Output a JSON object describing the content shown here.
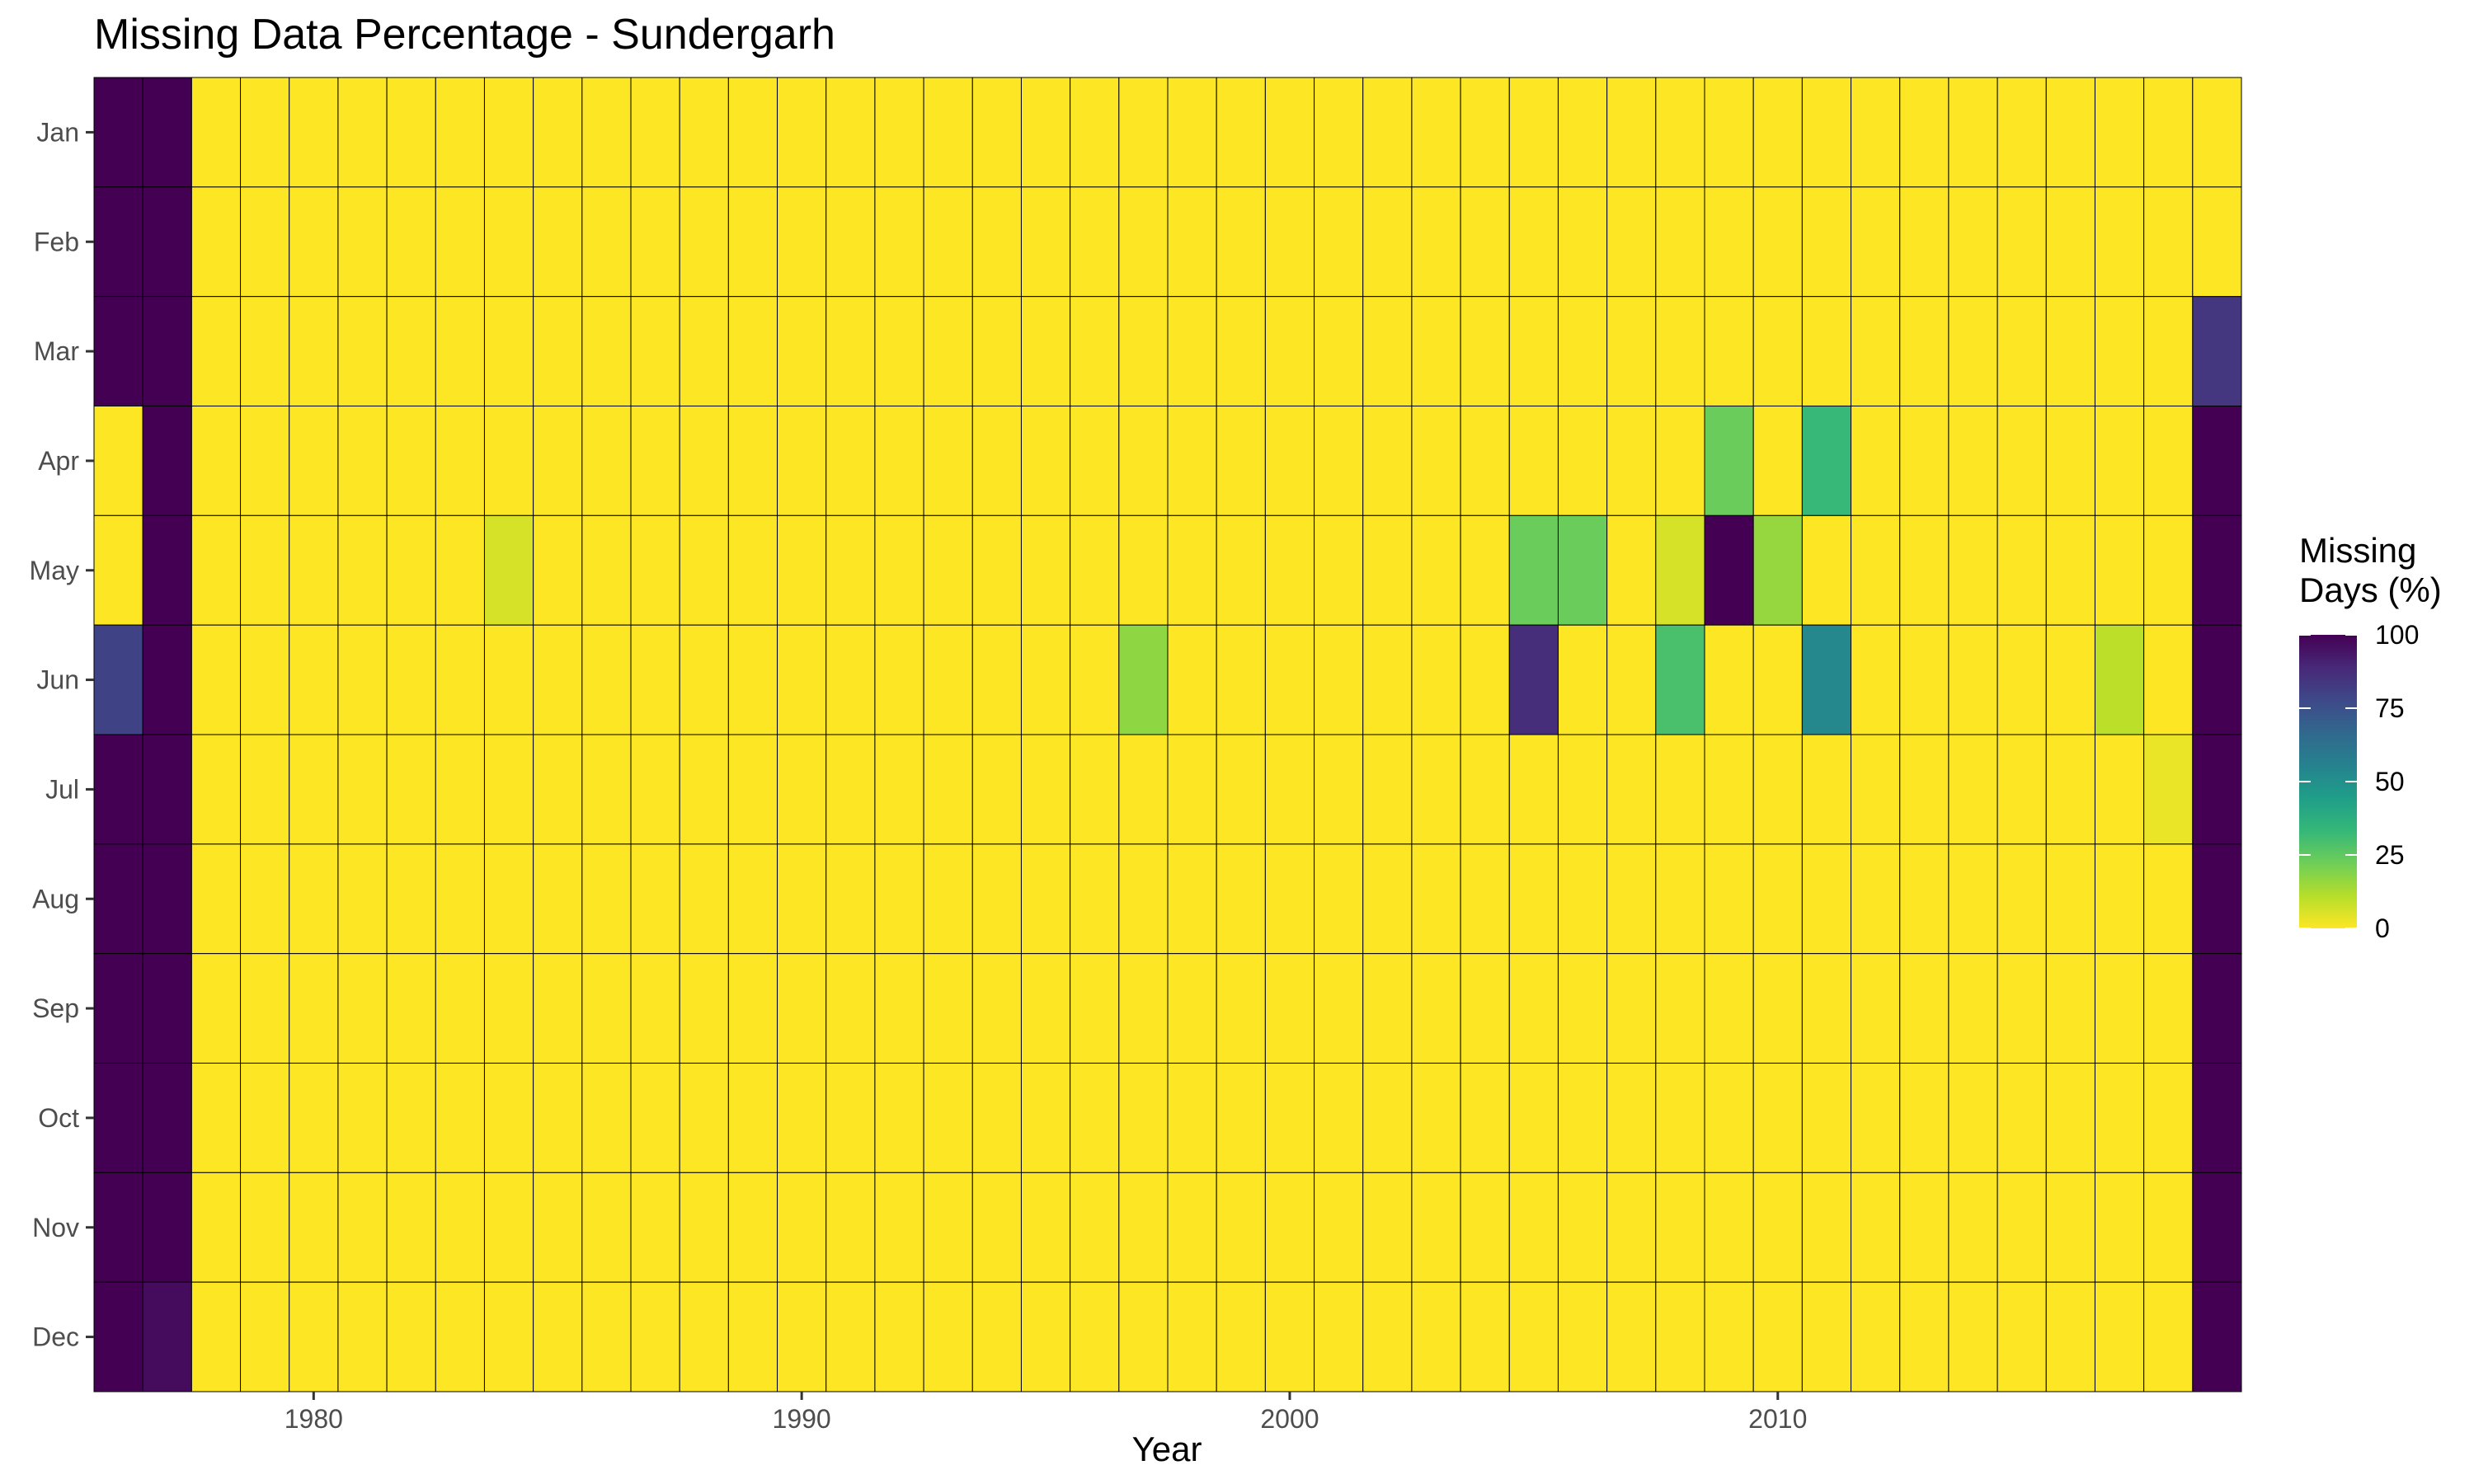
{
  "chart_data": {
    "type": "heatmap",
    "title": "Missing Data Percentage - Sundergarh",
    "xlabel": "Year",
    "ylabel": "",
    "x": [
      1976,
      1977,
      1978,
      1979,
      1980,
      1981,
      1982,
      1983,
      1984,
      1985,
      1986,
      1987,
      1988,
      1989,
      1990,
      1991,
      1992,
      1993,
      1994,
      1995,
      1996,
      1997,
      1998,
      1999,
      2000,
      2001,
      2002,
      2003,
      2004,
      2005,
      2006,
      2007,
      2008,
      2009,
      2010,
      2011,
      2012,
      2013,
      2014,
      2015,
      2016,
      2017,
      2018,
      2019
    ],
    "x_ticks": [
      1980,
      1990,
      2000,
      2010
    ],
    "y": [
      "Jan",
      "Feb",
      "Mar",
      "Apr",
      "May",
      "Jun",
      "Jul",
      "Aug",
      "Sep",
      "Oct",
      "Nov",
      "Dec"
    ],
    "nonzero_cells": [
      {
        "year": 1976,
        "month": "Jan",
        "value": 100
      },
      {
        "year": 1976,
        "month": "Feb",
        "value": 100
      },
      {
        "year": 1976,
        "month": "Mar",
        "value": 100
      },
      {
        "year": 1976,
        "month": "Jun",
        "value": 80
      },
      {
        "year": 1976,
        "month": "Jul",
        "value": 100
      },
      {
        "year": 1976,
        "month": "Aug",
        "value": 100
      },
      {
        "year": 1976,
        "month": "Sep",
        "value": 100
      },
      {
        "year": 1976,
        "month": "Oct",
        "value": 100
      },
      {
        "year": 1976,
        "month": "Nov",
        "value": 100
      },
      {
        "year": 1976,
        "month": "Dec",
        "value": 100
      },
      {
        "year": 1977,
        "month": "Jan",
        "value": 100
      },
      {
        "year": 1977,
        "month": "Feb",
        "value": 100
      },
      {
        "year": 1977,
        "month": "Mar",
        "value": 100
      },
      {
        "year": 1977,
        "month": "Apr",
        "value": 100
      },
      {
        "year": 1977,
        "month": "May",
        "value": 100
      },
      {
        "year": 1977,
        "month": "Jun",
        "value": 100
      },
      {
        "year": 1977,
        "month": "Jul",
        "value": 100
      },
      {
        "year": 1977,
        "month": "Aug",
        "value": 100
      },
      {
        "year": 1977,
        "month": "Sep",
        "value": 100
      },
      {
        "year": 1977,
        "month": "Oct",
        "value": 100
      },
      {
        "year": 1977,
        "month": "Nov",
        "value": 100
      },
      {
        "year": 1977,
        "month": "Dec",
        "value": 97
      },
      {
        "year": 1984,
        "month": "May",
        "value": 6
      },
      {
        "year": 1997,
        "month": "Jun",
        "value": 17
      },
      {
        "year": 2005,
        "month": "May",
        "value": 23
      },
      {
        "year": 2005,
        "month": "Jun",
        "value": 87
      },
      {
        "year": 2006,
        "month": "May",
        "value": 23
      },
      {
        "year": 2008,
        "month": "May",
        "value": 6
      },
      {
        "year": 2008,
        "month": "Jun",
        "value": 29
      },
      {
        "year": 2009,
        "month": "Apr",
        "value": 23
      },
      {
        "year": 2009,
        "month": "May",
        "value": 100
      },
      {
        "year": 2010,
        "month": "May",
        "value": 16
      },
      {
        "year": 2011,
        "month": "Apr",
        "value": 33
      },
      {
        "year": 2011,
        "month": "Jun",
        "value": 53
      },
      {
        "year": 2017,
        "month": "Jun",
        "value": 10
      },
      {
        "year": 2018,
        "month": "Jul",
        "value": 3
      },
      {
        "year": 2019,
        "month": "Mar",
        "value": 84
      },
      {
        "year": 2019,
        "month": "Apr",
        "value": 100
      },
      {
        "year": 2019,
        "month": "May",
        "value": 100
      },
      {
        "year": 2019,
        "month": "Jun",
        "value": 100
      },
      {
        "year": 2019,
        "month": "Jul",
        "value": 100
      },
      {
        "year": 2019,
        "month": "Aug",
        "value": 100
      },
      {
        "year": 2019,
        "month": "Sep",
        "value": 100
      },
      {
        "year": 2019,
        "month": "Oct",
        "value": 100
      },
      {
        "year": 2019,
        "month": "Nov",
        "value": 100
      },
      {
        "year": 2019,
        "month": "Dec",
        "value": 100
      }
    ],
    "default_value": 0,
    "legend": {
      "title": "Missing\nDays (%)",
      "breaks": [
        100,
        75,
        50,
        25,
        0
      ],
      "range": [
        0,
        100
      ],
      "position": "right",
      "palette": "viridis"
    },
    "colors": {
      "low": "#fde725",
      "high": "#440154",
      "viridis": [
        "#440154",
        "#482878",
        "#3e4989",
        "#31688e",
        "#26828e",
        "#1f9e89",
        "#35b779",
        "#6ece58",
        "#b5de2b",
        "#fde725"
      ],
      "cell_border": "#000000",
      "axis_text": "#4d4d4d"
    },
    "grid": false
  }
}
